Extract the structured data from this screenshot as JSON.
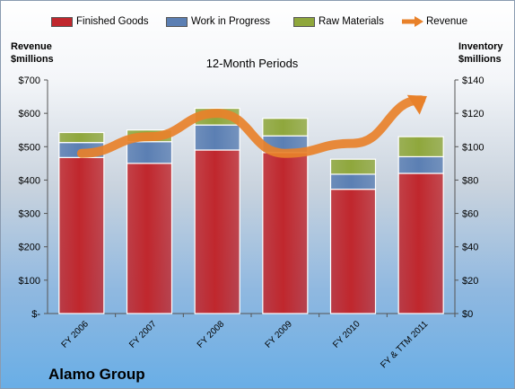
{
  "chart_data": {
    "type": "bar",
    "stacked": true,
    "title": "12-Month Periods",
    "company": "Alamo Group",
    "left_axis_title": [
      "Revenue",
      "$millions"
    ],
    "right_axis_title": [
      "Inventory",
      "$millions"
    ],
    "categories": [
      "FY 2006",
      "FY 2007",
      "FY 2008",
      "FY 2009",
      "FY 2010",
      "FY & TTM 2011"
    ],
    "series": [
      {
        "name": "Finished Goods",
        "axis": "right",
        "color": "#c0272d",
        "values": [
          93.5,
          90.0,
          98.0,
          96.5,
          74.5,
          84.0
        ]
      },
      {
        "name": "Work in Progress",
        "axis": "right",
        "color": "#5b7fb3",
        "values": [
          9.0,
          13.0,
          15.0,
          10.0,
          9.0,
          10.0
        ]
      },
      {
        "name": "Raw Materials",
        "axis": "right",
        "color": "#8fa73c",
        "values": [
          6.0,
          7.0,
          10.0,
          10.5,
          9.0,
          12.0
        ]
      },
      {
        "name": "Revenue",
        "axis": "left",
        "type": "line",
        "color": "#e8812a",
        "values": [
          480,
          530,
          600,
          480,
          510,
          640
        ]
      }
    ],
    "y_left": {
      "range": [
        0,
        700
      ],
      "ticks": [
        "$-",
        "$100",
        "$200",
        "$300",
        "$400",
        "$500",
        "$600",
        "$700"
      ]
    },
    "y_right": {
      "range": [
        0,
        140
      ],
      "ticks": [
        "$0",
        "$20",
        "$40",
        "$60",
        "$80",
        "$100",
        "$120",
        "$140"
      ]
    },
    "legend_position": "top",
    "grid": false
  }
}
